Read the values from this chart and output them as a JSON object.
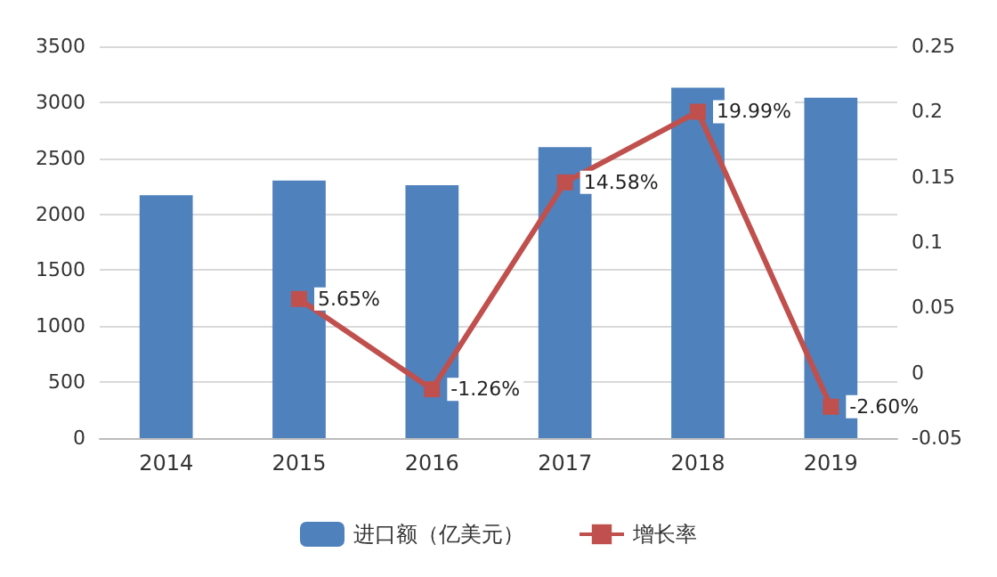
{
  "chart_data": {
    "type": "bar",
    "categories": [
      "2014",
      "2015",
      "2016",
      "2017",
      "2018",
      "2019"
    ],
    "series": [
      {
        "name": "进口额（亿美元）",
        "color": "#4f81bd",
        "values": [
          2170,
          2300,
          2260,
          2600,
          3130,
          3040
        ]
      },
      {
        "name": "增长率",
        "type": "line",
        "axis": "y2",
        "color": "#c0504d",
        "marker": "square",
        "values": [
          null,
          0.0565,
          -0.0126,
          0.1458,
          0.1999,
          -0.026
        ],
        "value_labels": [
          null,
          "5.65%",
          "-1.26%",
          "14.58%",
          "19.99%",
          "-2.60%"
        ]
      }
    ],
    "ylim": [
      0,
      3500
    ],
    "yticks": [
      0,
      500,
      1000,
      1500,
      2000,
      2500,
      3000,
      3500
    ],
    "y2lim": [
      -0.05,
      0.25
    ],
    "y2ticks": [
      -0.05,
      0,
      0.05,
      0.1,
      0.15,
      0.2,
      0.25
    ],
    "grid": "y",
    "legend": "bottom"
  }
}
